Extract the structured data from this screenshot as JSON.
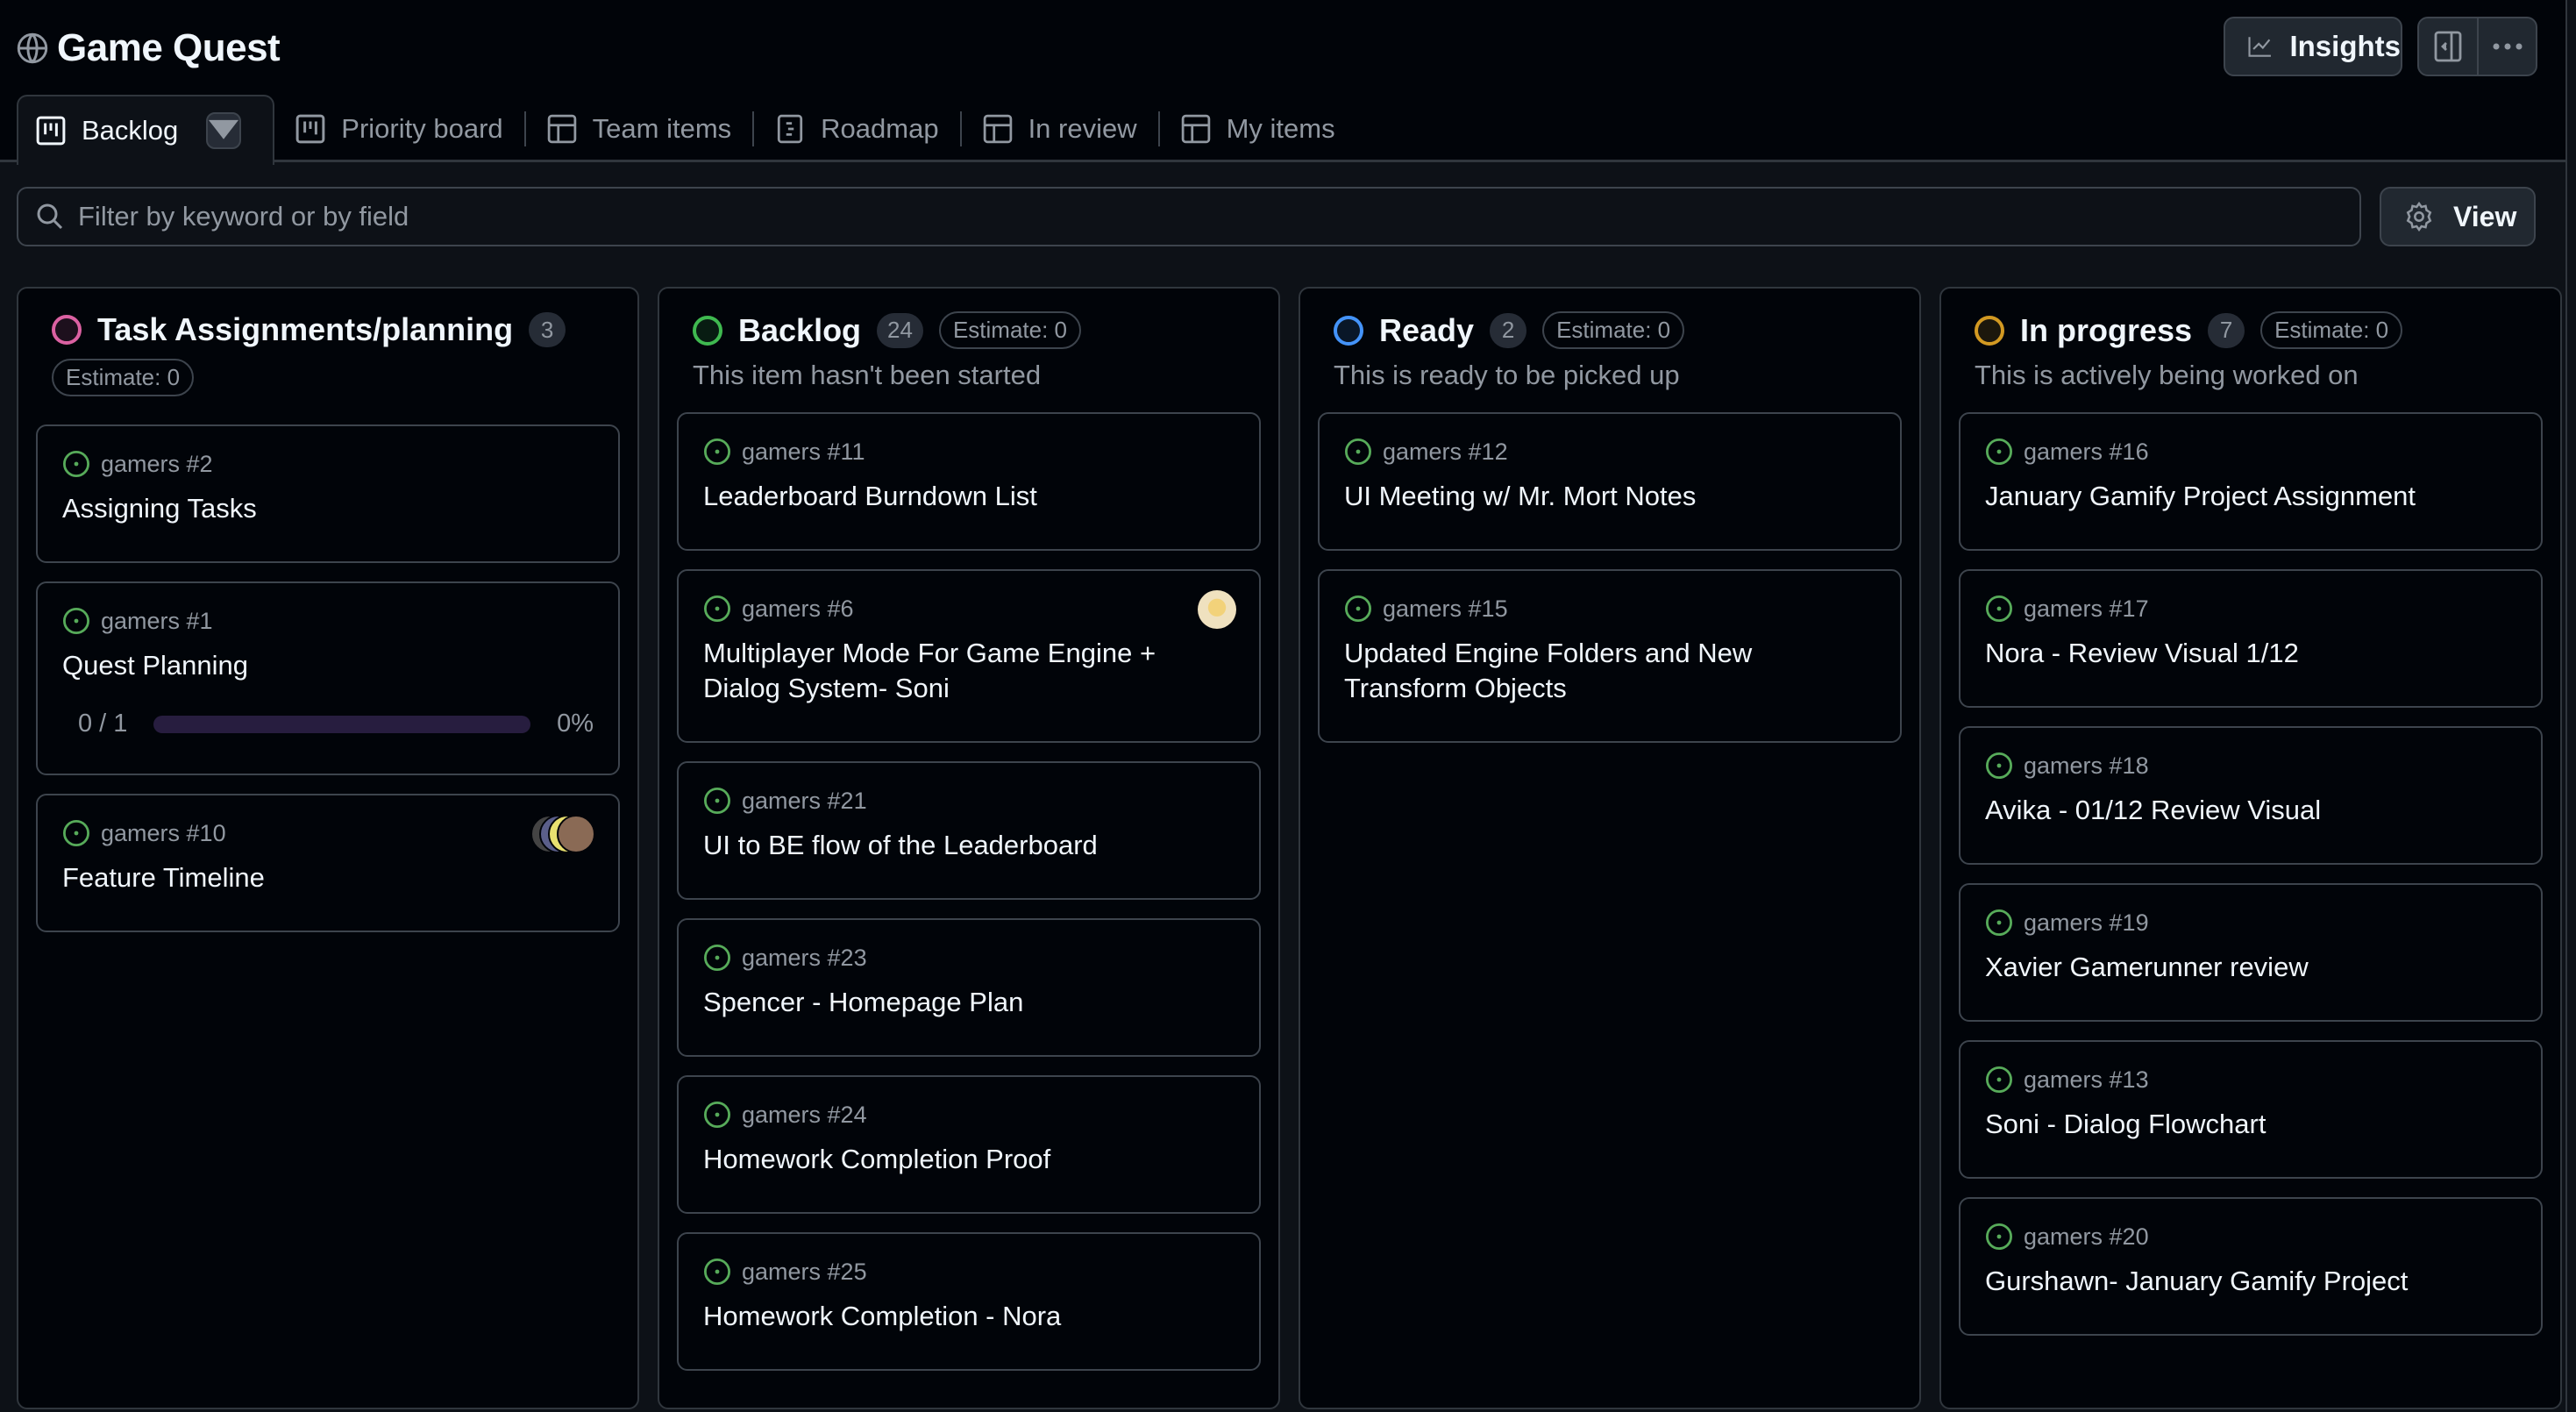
{
  "header": {
    "title": "Game Quest",
    "insights_label": "Insights"
  },
  "tabs": [
    {
      "label": "Backlog",
      "icon": "board-icon",
      "active": true
    },
    {
      "label": "Priority board",
      "icon": "board-icon"
    },
    {
      "label": "Team items",
      "icon": "table-icon"
    },
    {
      "label": "Roadmap",
      "icon": "roadmap-icon"
    },
    {
      "label": "In review",
      "icon": "table-icon"
    },
    {
      "label": "My items",
      "icon": "table-icon"
    }
  ],
  "filter": {
    "placeholder": "Filter by keyword or by field",
    "value": ""
  },
  "view_label": "View",
  "colors": {
    "green": "#57ab5a",
    "pink": "#db61a2",
    "blue": "#4493f8",
    "yellow": "#d29922"
  },
  "columns": [
    {
      "title": "Task Assignments/planning",
      "count": "3",
      "estimate": "Estimate: 0",
      "color": "#db61a2",
      "description": "",
      "cards": [
        {
          "ref": "gamers #2",
          "title": "Assigning Tasks"
        },
        {
          "ref": "gamers #1",
          "title": "Quest Planning",
          "progress": {
            "done": "0 / 1",
            "percent_label": "0%",
            "fraction": 0
          }
        },
        {
          "ref": "gamers #10",
          "title": "Feature Timeline",
          "avatars": 4
        }
      ]
    },
    {
      "title": "Backlog",
      "count": "24",
      "estimate": "Estimate: 0",
      "color": "#3fb950",
      "description": "This item hasn't been started",
      "cards": [
        {
          "ref": "gamers #11",
          "title": "Leaderboard Burndown List"
        },
        {
          "ref": "gamers #6",
          "title": "Multiplayer Mode For Game Engine + Dialog System- Soni",
          "avatars": 1
        },
        {
          "ref": "gamers #21",
          "title": "UI to BE flow of the Leaderboard"
        },
        {
          "ref": "gamers #23",
          "title": "Spencer - Homepage Plan"
        },
        {
          "ref": "gamers #24",
          "title": "Homework Completion Proof"
        },
        {
          "ref": "gamers #25",
          "title": "Homework Completion - Nora"
        }
      ]
    },
    {
      "title": "Ready",
      "count": "2",
      "estimate": "Estimate: 0",
      "color": "#4493f8",
      "description": "This is ready to be picked up",
      "cards": [
        {
          "ref": "gamers #12",
          "title": "UI Meeting w/ Mr. Mort Notes"
        },
        {
          "ref": "gamers #15",
          "title": "Updated Engine Folders and New Transform Objects"
        }
      ]
    },
    {
      "title": "In progress",
      "count": "7",
      "estimate": "Estimate: 0",
      "color": "#d29922",
      "description": "This is actively being worked on",
      "cards": [
        {
          "ref": "gamers #16",
          "title": "January Gamify Project Assignment"
        },
        {
          "ref": "gamers #17",
          "title": "Nora - Review Visual 1/12"
        },
        {
          "ref": "gamers #18",
          "title": "Avika - 01/12 Review Visual"
        },
        {
          "ref": "gamers #19",
          "title": "Xavier Gamerunner review"
        },
        {
          "ref": "gamers #13",
          "title": "Soni - Dialog Flowchart"
        },
        {
          "ref": "gamers #20",
          "title": "Gurshawn- January Gamify Project"
        }
      ]
    }
  ]
}
